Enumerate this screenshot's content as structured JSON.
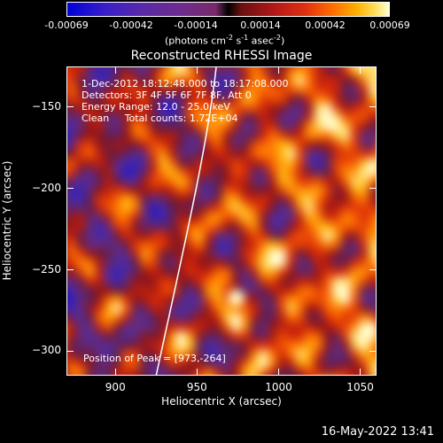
{
  "chart_data": {
    "type": "heatmap",
    "title": "Reconstructed RHESSI Image",
    "xlabel": "Heliocentric X (arcsec)",
    "ylabel": "Heliocentric Y (arcsec)",
    "xlim": [
      870,
      1060
    ],
    "ylim": [
      -315,
      -125
    ],
    "x_ticks": [
      "900",
      "950",
      "1000",
      "1050"
    ],
    "y_ticks": [
      "-150",
      "-200",
      "-250",
      "-300"
    ],
    "colorbar": {
      "ticks": [
        "-0.00069",
        "-0.00042",
        "-0.00014",
        "0.00014",
        "0.00042",
        "0.00069"
      ],
      "label_parts": [
        "(photons cm",
        "-2",
        " s",
        "-1",
        " asec",
        "-2",
        ")"
      ]
    },
    "annotations": [
      "1-Dec-2012 18:12:48.000 to 18:17:08.000",
      "Detectors: 3F 4F 5F 6F 7F 8F, Att 0",
      "Energy Range: 12.0 - 25.0 keV",
      "Clean     Total counts: 1.72E+04"
    ],
    "peak_label": "Position of Peak = [973,-264]",
    "peak": [
      973,
      -264
    ]
  },
  "timestamp": "16-May-2022 13:41"
}
